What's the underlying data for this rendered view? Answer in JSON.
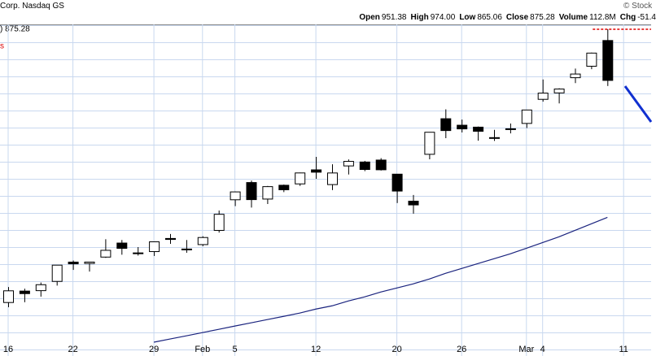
{
  "header": {
    "source": "Corp. Nasdaq GS",
    "credit": "© Stock",
    "legend": ") 875.28",
    "legend_sub": "s",
    "quote": [
      {
        "label": "Open",
        "value": "951.38"
      },
      {
        "label": "High",
        "value": "974.00"
      },
      {
        "label": "Low",
        "value": "865.06"
      },
      {
        "label": "Close",
        "value": "875.28"
      },
      {
        "label": "Volume",
        "value": "112.8M"
      },
      {
        "label": "Chg",
        "value": "-51.4"
      }
    ]
  },
  "chart_data": {
    "type": "candlestick",
    "categories": [
      "16",
      null,
      null,
      null,
      "22",
      null,
      null,
      null,
      null,
      "29",
      null,
      null,
      "Feb",
      null,
      "5",
      null,
      null,
      null,
      null,
      "12",
      null,
      null,
      null,
      null,
      "20",
      null,
      null,
      null,
      "26",
      null,
      null,
      null,
      "Mar",
      "4",
      null,
      null,
      null,
      null,
      "11"
    ],
    "open": [
      550.2,
      563.5,
      564.0,
      575.0,
      598.7,
      597.0,
      605.0,
      623.0,
      609.6,
      612.0,
      629.0,
      614.4,
      621.0,
      639.7,
      682.0,
      707.0,
      683.0,
      703.0,
      705.0,
      726.0,
      704.0,
      732.0,
      738.0,
      741.0,
      719.5,
      680.0,
      750.0,
      807.9,
      797.0,
      793.8,
      776.2,
      790.94,
      800.0,
      841.3,
      852.7,
      880.22,
      901.58,
      951.38,
      null
    ],
    "high": [
      568.35,
      566.35,
      573.7,
      595.0,
      600.7,
      599.0,
      628.0,
      627.0,
      617.8,
      624.9,
      634.9,
      627.0,
      631.9,
      666.8,
      694.0,
      710.0,
      702.0,
      704.0,
      721.85,
      746.0,
      734.5,
      742.0,
      739.75,
      744.0,
      719.56,
      688.9,
      785.75,
      823.94,
      806.46,
      794.8,
      789.33,
      799.9,
      823.0,
      876.95,
      860.97,
      897.24,
      927.67,
      974.0,
      null
    ],
    "low": [
      544.8,
      550.54,
      557.0,
      570.0,
      589.0,
      587.0,
      604.0,
      608.0,
      606.9,
      606.4,
      622.0,
      610.5,
      619.0,
      636.8,
      673.0,
      671.0,
      676.0,
      693.0,
      702.0,
      712.5,
      696.0,
      719.0,
      724.0,
      725.0,
      677.34,
      662.5,
      742.2,
      775.7,
      785.05,
      771.62,
      771.25,
      783.5,
      792.33,
      837.2,
      834.17,
      870.34,
      896.02,
      865.06,
      null
    ],
    "close": [
      563.82,
      560.53,
      571.07,
      594.91,
      596.54,
      598.73,
      613.62,
      616.17,
      610.31,
      624.65,
      627.74,
      615.27,
      630.27,
      661.6,
      693.32,
      682.23,
      700.99,
      696.41,
      721.33,
      722.48,
      721.28,
      739.0,
      726.58,
      726.13,
      694.52,
      674.72,
      785.38,
      788.17,
      790.92,
      787.01,
      776.63,
      791.12,
      822.79,
      852.37,
      859.64,
      887.0,
      926.69,
      875.28,
      null
    ],
    "overlay": {
      "color": "#1a237e",
      "values": [
        null,
        null,
        null,
        null,
        null,
        null,
        null,
        null,
        null,
        506.4,
        509.8,
        513.2,
        516.7,
        520.2,
        523.8,
        527.3,
        530.9,
        534.5,
        538.2,
        542.7,
        546.4,
        552.0,
        556.7,
        562.4,
        567.2,
        572.0,
        577.9,
        584.8,
        590.8,
        596.8,
        602.9,
        609.1,
        616.3,
        623.7,
        631.1,
        639.7,
        648.5,
        657.4,
        null
      ]
    },
    "ylim": [
      492,
      984
    ],
    "log_scale": true,
    "candle_color": "#000000"
  }
}
